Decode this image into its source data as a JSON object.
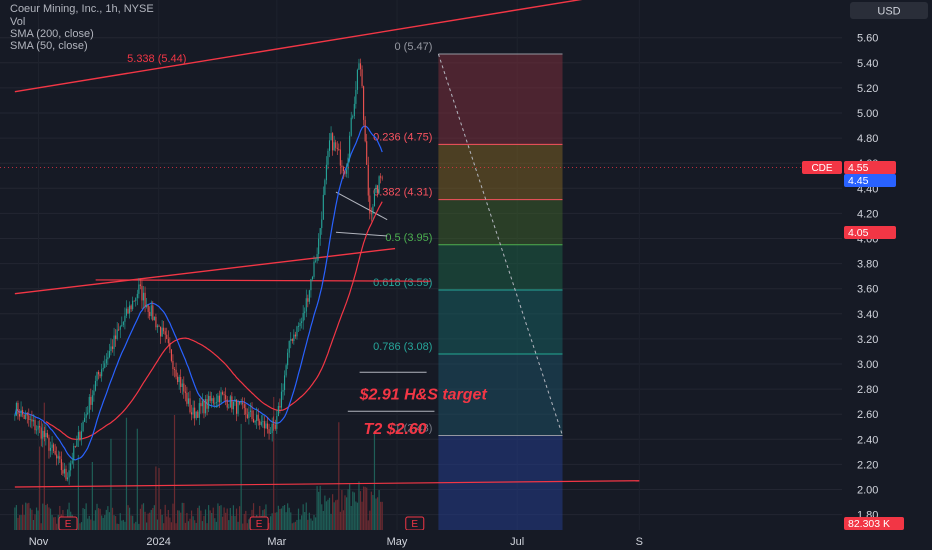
{
  "header": {
    "title": "Coeur Mining, Inc., 1h, NYSE",
    "indicators": [
      "Vol",
      "SMA (200, close)",
      "SMA (50, close)"
    ]
  },
  "currency_button": "USD",
  "ticker_label": "CDE",
  "price_tags": [
    "4.55",
    "4.45",
    "4.05"
  ],
  "volume_tag": "82.303 K",
  "earnings_marker": "E",
  "colors": {
    "background": "#161a25",
    "trendline": "#f23645",
    "sma_fast": "#2962ff",
    "sma_slow": "#f23645",
    "candle_up": "#26a69a",
    "candle_down": "#ef5350"
  },
  "chart_data": {
    "type": "candlestick",
    "ylim": [
      1.7,
      5.8
    ],
    "y_ticks": [
      "5.60",
      "5.40",
      "5.20",
      "5.00",
      "4.80",
      "4.60",
      "4.40",
      "4.20",
      "4.00",
      "3.80",
      "3.60",
      "3.40",
      "3.20",
      "3.00",
      "2.80",
      "2.60",
      "2.40",
      "2.20",
      "2.00",
      "1.80"
    ],
    "x_ticks": [
      "Nov",
      "2024",
      "Mar",
      "May",
      "Jul",
      "S"
    ],
    "price_path": {
      "dates": [
        "2023-10-20",
        "2023-11-03",
        "2023-11-15",
        "2023-12-01",
        "2023-12-13",
        "2023-12-22",
        "2024-01-04",
        "2024-01-18",
        "2024-02-01",
        "2024-02-15",
        "2024-02-29",
        "2024-03-08",
        "2024-03-14",
        "2024-03-22",
        "2024-03-28",
        "2024-04-05",
        "2024-04-12",
        "2024-04-17",
        "2024-04-24"
      ],
      "prices": [
        2.65,
        2.45,
        2.1,
        2.9,
        3.3,
        3.6,
        3.2,
        2.6,
        2.75,
        2.6,
        2.45,
        3.2,
        3.35,
        3.95,
        4.8,
        4.55,
        5.47,
        4.2,
        4.55
      ]
    },
    "fibonacci": [
      {
        "label": "0 (5.47)",
        "value": 5.47
      },
      {
        "label": "0.236 (4.75)",
        "value": 4.75
      },
      {
        "label": "0.382 (4.31)",
        "value": 4.31
      },
      {
        "label": "0.5 (3.95)",
        "value": 3.95
      },
      {
        "label": "0.618 (3.59)",
        "value": 3.59
      },
      {
        "label": "0.786 (3.08)",
        "value": 3.08
      },
      {
        "label": "1 (2.43)",
        "value": 2.43
      }
    ],
    "annotations": [
      {
        "label": "$2.91 H&S  target",
        "value": 2.91
      },
      {
        "label": "T2 $2.60",
        "value": 2.6
      },
      {
        "label": "5.338 (5.44)",
        "value": 5.44
      }
    ]
  }
}
